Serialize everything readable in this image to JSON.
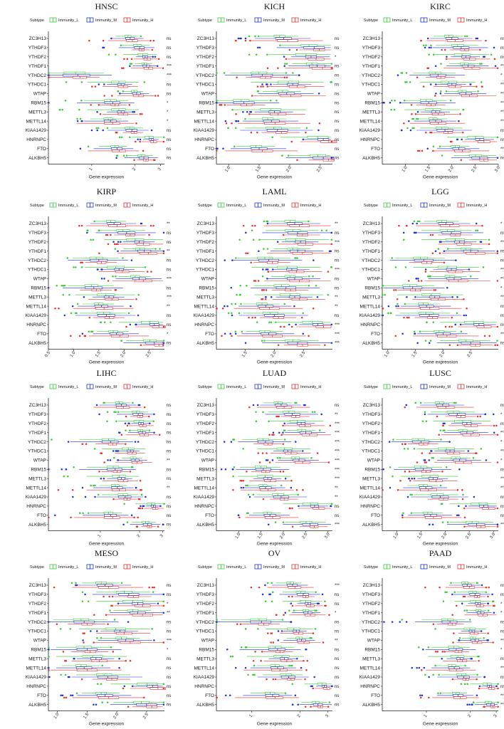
{
  "figure": {
    "legend_title": "Subtype",
    "xlabel": "Gene expression",
    "genes": [
      "ZC3H13",
      "YTHDF3",
      "YTHDF2",
      "YTHDF1",
      "YTHDC2",
      "YTHDC1",
      "WTAP",
      "RBM15",
      "METTL3",
      "METTL14",
      "KIAA1429",
      "HNRNPC",
      "FTO",
      "ALKBH5"
    ]
  },
  "colors": {
    "Immunity_L": "#33cc33",
    "Immunity_M": "#1a2fd6",
    "Immunity_H": "#e62e2e",
    "axis": "#222222"
  },
  "chart_data": [
    {
      "type": "boxplot",
      "title": "HNSC",
      "xlim": [
        0.5,
        3.2
      ],
      "xscale": "log",
      "ticks": [
        1,
        2,
        3
      ],
      "tick_labels": [
        "1",
        "2",
        "3"
      ],
      "legend": [
        "Immunity_L",
        "Immunity_M",
        "Immunity_H"
      ],
      "genes": [
        "ZC3H13",
        "YTHDF3",
        "YTHDF2",
        "YTHDF1",
        "YTHDC2",
        "YTHDC1",
        "WTAP",
        "RBM15",
        "METTL3",
        "METTL14",
        "KIAA1429",
        "HNRNPC",
        "FTO",
        "ALKBH5"
      ],
      "medians": [
        1.85,
        2.15,
        2.35,
        2.4,
        0.8,
        1.6,
        2.05,
        1.4,
        1.6,
        1.35,
        1.9,
        2.6,
        1.5,
        2.3
      ],
      "significance": [
        "ns",
        "ns",
        "ns",
        "***",
        "***",
        "ns",
        "ns",
        "*",
        "*",
        "*",
        "ns",
        "ns",
        "ns",
        "ns"
      ]
    },
    {
      "type": "boxplot",
      "title": "KICH",
      "xlim": [
        0.8,
        2.7
      ],
      "xscale": "linear",
      "ticks": [
        1.0,
        1.5,
        2.0,
        2.5
      ],
      "tick_labels": [
        "1.0",
        "1.5",
        "2.0",
        "2.5"
      ],
      "legend": [
        "Immunity_L",
        "Immunity_M",
        "Immunity_H"
      ],
      "genes": [
        "ZC3H13",
        "YTHDF3",
        "YTHDF2",
        "YTHDF1",
        "YTHDC2",
        "YTHDC1",
        "WTAP",
        "RBM15",
        "METTL3",
        "METTL14",
        "KIAA1429",
        "HNRNPC",
        "FTO",
        "ALKBH5"
      ],
      "medians": [
        1.9,
        2.4,
        2.35,
        2.45,
        1.55,
        2.05,
        1.95,
        1.25,
        1.75,
        1.7,
        1.8,
        2.55,
        1.5,
        2.55
      ],
      "significance": [
        "ns",
        "ns",
        "*",
        "ns",
        "ns",
        "ns",
        "ns",
        "ns",
        "ns",
        "ns",
        "ns",
        "ns",
        "ns",
        "ns"
      ]
    },
    {
      "type": "boxplot",
      "title": "KIRC",
      "xlim": [
        0.5,
        3.0
      ],
      "xscale": "linear",
      "ticks": [
        1.0,
        1.5,
        2.0,
        2.5,
        3.0
      ],
      "tick_labels": [
        "1.0",
        "1.5",
        "2.0",
        "2.5",
        "3.0"
      ],
      "legend": [
        "Immunity_L",
        "Immunity_M",
        "Immunity_H"
      ],
      "genes": [
        "ZC3H13",
        "YTHDF3",
        "YTHDF2",
        "YTHDF1",
        "YTHDC2",
        "YTHDC1",
        "WTAP",
        "RBM15",
        "METTL3",
        "METTL14",
        "KIAA1429",
        "HNRNPC",
        "FTO",
        "ALKBH5"
      ],
      "medians": [
        2.0,
        2.2,
        2.3,
        2.35,
        1.7,
        2.0,
        2.3,
        1.5,
        1.65,
        1.65,
        1.85,
        2.6,
        2.15,
        2.6
      ],
      "significance": [
        "ns",
        "ns",
        "ns",
        "**",
        "*",
        "***",
        "***",
        "**",
        "**",
        "**",
        "ns",
        "ns",
        "***",
        "ns"
      ]
    },
    {
      "type": "boxplot",
      "title": "KIRP",
      "xlim": [
        0.5,
        2.8
      ],
      "xscale": "linear",
      "ticks": [
        0.5,
        1.0,
        1.5,
        2.0,
        2.5
      ],
      "tick_labels": [
        "0.5",
        "1.0",
        "1.5",
        "2.0",
        "2.5"
      ],
      "legend": [
        "Immunity_L",
        "Immunity_M",
        "Immunity_H"
      ],
      "genes": [
        "ZC3H13",
        "YTHDF3",
        "YTHDF2",
        "YTHDF1",
        "YTHDC2",
        "YTHDC1",
        "WTAP",
        "RBM15",
        "METTL3",
        "METTL14",
        "KIAA1429",
        "HNRNPC",
        "FTO",
        "ALKBH5"
      ],
      "medians": [
        1.8,
        2.05,
        2.3,
        2.4,
        1.5,
        1.9,
        2.3,
        1.4,
        1.7,
        1.55,
        1.65,
        2.6,
        1.85,
        2.6
      ],
      "significance": [
        "**",
        "ns",
        "ns",
        "**",
        "ns",
        "ns",
        "***",
        "ns",
        "***",
        "**",
        "ns",
        "ns",
        "*",
        "ns"
      ]
    },
    {
      "type": "boxplot",
      "title": "LAML",
      "xlim": [
        1.0,
        3.0
      ],
      "xscale": "linear",
      "ticks": [
        1.5,
        2.0,
        2.5
      ],
      "tick_labels": [
        "1.5",
        "2.0",
        "2.5"
      ],
      "legend": [
        "Immunity_L",
        "Immunity_M",
        "Immunity_H"
      ],
      "genes": [
        "ZC3H13",
        "YTHDF3",
        "YTHDF2",
        "YTHDF1",
        "YTHDC2",
        "YTHDC1",
        "WTAP",
        "RBM15",
        "METTL3",
        "METTL14",
        "KIAA1429",
        "HNRNPC",
        "FTO",
        "ALKBH5"
      ],
      "medians": [
        2.35,
        2.4,
        2.45,
        2.4,
        1.9,
        2.3,
        2.35,
        2.2,
        2.35,
        1.85,
        2.0,
        2.75,
        1.9,
        2.4
      ],
      "significance": [
        "**",
        "ns",
        "***",
        "ns",
        "ns",
        "***",
        "ns",
        "ns",
        "**",
        "**",
        "ns",
        "***",
        "***",
        "***"
      ]
    },
    {
      "type": "boxplot",
      "title": "LGG",
      "xlim": [
        0.9,
        3.0
      ],
      "xscale": "linear",
      "ticks": [
        1.0,
        1.5,
        2.0,
        2.5
      ],
      "tick_labels": [
        "1.0",
        "1.5",
        "2.0",
        "2.5"
      ],
      "legend": [
        "Immunity_L",
        "Immunity_M",
        "Immunity_H"
      ],
      "genes": [
        "ZC3H13",
        "YTHDF3",
        "YTHDF2",
        "YTHDF1",
        "YTHDC2",
        "YTHDC1",
        "WTAP",
        "RBM15",
        "METTL3",
        "METTL14",
        "KIAA1429",
        "HNRNPC",
        "FTO",
        "ALKBH5"
      ],
      "medians": [
        2.05,
        2.15,
        2.3,
        2.5,
        1.65,
        2.15,
        2.2,
        1.45,
        1.85,
        1.7,
        1.75,
        2.65,
        2.0,
        2.5
      ],
      "significance": [
        "*",
        "ns",
        "**",
        "ns",
        "ns",
        "***",
        "**",
        "*",
        "***",
        "ns",
        "ns",
        "ns",
        "***",
        "ns"
      ]
    },
    {
      "type": "boxplot",
      "title": "LIHC",
      "xlim": [
        0.4,
        3.1
      ],
      "xscale": "log",
      "ticks": [
        1,
        2,
        3
      ],
      "tick_labels": [
        "1",
        "2",
        "3"
      ],
      "legend": [
        "Immunity_L",
        "Immunity_M",
        "Immunity_H"
      ],
      "genes": [
        "ZC3H13",
        "YTHDF3",
        "YTHDF2",
        "YTHDF1",
        "YTHDC2",
        "YTHDC1",
        "WTAP",
        "RBM15",
        "METTL3",
        "METTL14",
        "KIAA1429",
        "HNRNPC",
        "FTO",
        "ALKBH5"
      ],
      "medians": [
        1.45,
        1.95,
        2.05,
        2.1,
        1.2,
        1.7,
        1.85,
        1.3,
        1.45,
        1.35,
        1.55,
        2.55,
        1.2,
        2.3
      ],
      "significance": [
        "ns",
        "ns",
        "ns",
        "ns",
        "ns",
        "ns",
        "**",
        "ns",
        "ns",
        "**",
        "ns",
        "ns",
        "ns",
        "ns"
      ]
    },
    {
      "type": "boxplot",
      "title": "LUAD",
      "xlim": [
        0.5,
        3.1
      ],
      "xscale": "linear",
      "ticks": [
        1.0,
        1.5,
        2.0,
        2.5,
        3.0
      ],
      "tick_labels": [
        "1.0",
        "1.5",
        "2.0",
        "2.5",
        "3.0"
      ],
      "legend": [
        "Immunity_L",
        "Immunity_M",
        "Immunity_H"
      ],
      "genes": [
        "ZC3H13",
        "YTHDF3",
        "YTHDF2",
        "YTHDF1",
        "YTHDC2",
        "YTHDC1",
        "WTAP",
        "RBM15",
        "METTL3",
        "METTL14",
        "KIAA1429",
        "HNRNPC",
        "FTO",
        "ALKBH5"
      ],
      "medians": [
        1.95,
        2.2,
        2.4,
        2.5,
        1.6,
        2.1,
        2.35,
        1.55,
        1.65,
        1.6,
        1.95,
        2.7,
        1.7,
        2.6
      ],
      "significance": [
        "ns",
        "**",
        "***",
        "***",
        "***",
        "***",
        "***",
        "***",
        "***",
        "**",
        "**",
        "ns",
        "ns",
        "***"
      ]
    },
    {
      "type": "boxplot",
      "title": "LUSC",
      "xlim": [
        0.7,
        3.1
      ],
      "xscale": "linear",
      "ticks": [
        1.0,
        1.5,
        2.0,
        2.5,
        3.0
      ],
      "tick_labels": [
        "1.0",
        "1.5",
        "2.0",
        "2.5",
        "3.0"
      ],
      "legend": [
        "Immunity_L",
        "Immunity_M",
        "Immunity_H"
      ],
      "genes": [
        "ZC3H13",
        "YTHDF3",
        "YTHDF2",
        "YTHDF1",
        "YTHDC2",
        "YTHDC1",
        "WTAP",
        "RBM15",
        "METTL3",
        "METTL14",
        "KIAA1429",
        "HNRNPC",
        "FTO",
        "ALKBH5"
      ],
      "medians": [
        1.95,
        2.25,
        2.45,
        2.45,
        1.5,
        2.1,
        2.3,
        1.55,
        1.75,
        1.6,
        1.9,
        2.8,
        1.7,
        2.65
      ],
      "significance": [
        "ns",
        "*",
        "ns",
        "***",
        "*",
        "***",
        "*",
        "ns",
        "***",
        "**",
        "ns",
        "ns",
        "ns",
        "***"
      ]
    },
    {
      "type": "boxplot",
      "title": "MESO",
      "xlim": [
        0.85,
        2.8
      ],
      "xscale": "linear",
      "ticks": [
        1.0,
        1.5,
        2.0,
        2.5
      ],
      "tick_labels": [
        "1.0",
        "1.5",
        "2.0",
        "2.5"
      ],
      "legend": [
        "Immunity_L",
        "Immunity_M",
        "Immunity_H"
      ],
      "genes": [
        "ZC3H13",
        "YTHDF3",
        "YTHDF2",
        "YTHDF1",
        "YTHDC2",
        "YTHDC1",
        "WTAP",
        "RBM15",
        "METTL3",
        "METTL14",
        "KIAA1429",
        "HNRNPC",
        "FTO",
        "ALKBH5"
      ],
      "medians": [
        1.8,
        2.2,
        2.35,
        2.35,
        1.45,
        2.05,
        2.15,
        1.5,
        1.65,
        1.45,
        1.85,
        2.6,
        1.8,
        2.5
      ],
      "significance": [
        "ns",
        "ns",
        "*",
        "**",
        "ns",
        "ns",
        "***",
        "*",
        "ns",
        "ns",
        "ns",
        "ns",
        "ns",
        "ns"
      ]
    },
    {
      "type": "boxplot",
      "title": "OV",
      "xlim": [
        0.6,
        3.2
      ],
      "xscale": "log",
      "ticks": [
        1,
        2,
        3
      ],
      "tick_labels": [
        "1",
        "2",
        "3"
      ],
      "legend": [
        "Immunity_L",
        "Immunity_M",
        "Immunity_H"
      ],
      "genes": [
        "ZC3H13",
        "YTHDF3",
        "YTHDF2",
        "YTHDF1",
        "YTHDC2",
        "YTHDC1",
        "WTAP",
        "RBM15",
        "METTL3",
        "METTL14",
        "KIAA1429",
        "HNRNPC",
        "FTO",
        "ALKBH5"
      ],
      "medians": [
        1.8,
        2.1,
        2.25,
        2.25,
        1.15,
        1.9,
        2.05,
        1.45,
        1.6,
        1.45,
        1.7,
        2.85,
        1.35,
        2.6
      ],
      "significance": [
        "***",
        "ns",
        "ns",
        "*",
        "ns",
        "ns",
        "**",
        "ns",
        "ns",
        "ns",
        "ns",
        "ns",
        "ns",
        "ns"
      ]
    },
    {
      "type": "boxplot",
      "title": "PAAD",
      "xlim": [
        0.5,
        3.1
      ],
      "xscale": "log",
      "ticks": [
        1,
        2,
        3
      ],
      "tick_labels": [
        "1",
        "2",
        "3"
      ],
      "legend": [
        "Immunity_L",
        "Immunity_M",
        "Immunity_H"
      ],
      "genes": [
        "ZC3H13",
        "YTHDF3",
        "YTHDF2",
        "YTHDF1",
        "YTHDC2",
        "YTHDC1",
        "WTAP",
        "RBM15",
        "METTL3",
        "METTL14",
        "KIAA1429",
        "HNRNPC",
        "FTO",
        "ALKBH5"
      ],
      "medians": [
        1.9,
        2.15,
        2.25,
        2.35,
        1.45,
        2.05,
        2.15,
        1.6,
        1.7,
        1.55,
        1.8,
        2.7,
        1.65,
        2.75
      ],
      "significance": [
        "ns",
        "ns",
        "*",
        "*",
        "ns",
        "ns",
        "***",
        "*",
        "ns",
        "***",
        "ns",
        "ns",
        "**",
        "***"
      ]
    }
  ]
}
